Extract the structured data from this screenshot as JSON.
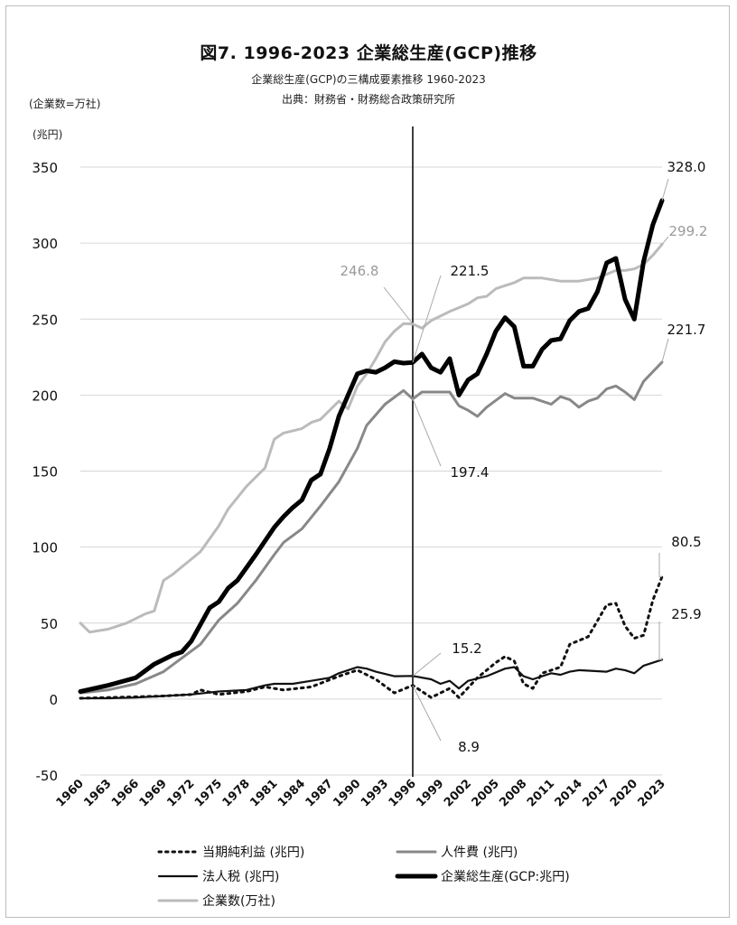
{
  "chart_data": {
    "type": "line",
    "title": "図7. 1996-2023 企業総生産(GCP)推移",
    "subtitle": "企業総生産(GCP)の三構成要素推移 1960-2023",
    "source": "出典：財務省・財務総合政策研究所",
    "unit_count": "(企業数=万社)",
    "unit_money": "(兆円)",
    "ylim": [
      -50,
      350
    ],
    "yticks": [
      -50,
      0,
      50,
      100,
      150,
      200,
      250,
      300,
      350
    ],
    "xlim": [
      1960,
      2023
    ],
    "xticks": [
      1960,
      1963,
      1966,
      1969,
      1972,
      1975,
      1978,
      1981,
      1984,
      1987,
      1990,
      1993,
      1996,
      1999,
      2002,
      2005,
      2008,
      2011,
      2014,
      2017,
      2020,
      2023
    ],
    "grid": true,
    "vline": 1996,
    "legend_position": "bottom",
    "series": [
      {
        "name": "当期純利益 (兆円)",
        "color": "#111111",
        "style": "dotted",
        "x": [
          1960,
          1963,
          1966,
          1969,
          1972,
          1973,
          1975,
          1978,
          1980,
          1982,
          1985,
          1988,
          1990,
          1992,
          1994,
          1996,
          1998,
          2000,
          2001,
          2003,
          2005,
          2006,
          2007,
          2008,
          2009,
          2010,
          2012,
          2013,
          2015,
          2017,
          2018,
          2019,
          2020,
          2021,
          2022,
          2023
        ],
        "values": [
          0.5,
          1,
          1.5,
          2,
          3,
          6,
          3,
          5,
          8,
          6,
          8,
          15,
          19,
          13,
          4,
          9,
          1,
          7,
          1,
          14,
          24,
          28,
          25,
          10,
          7,
          17,
          21,
          36,
          41,
          62,
          63,
          48,
          40,
          42,
          65,
          80.5
        ]
      },
      {
        "name": "人件費 (兆円)",
        "color": "#888888",
        "style": "solid",
        "x": [
          1960,
          1963,
          1966,
          1969,
          1971,
          1973,
          1975,
          1977,
          1979,
          1981,
          1982,
          1984,
          1986,
          1988,
          1990,
          1991,
          1993,
          1995,
          1996,
          1997,
          1998,
          2000,
          2001,
          2002,
          2003,
          2004,
          2006,
          2007,
          2009,
          2011,
          2012,
          2013,
          2014,
          2015,
          2016,
          2017,
          2018,
          2019,
          2020,
          2021,
          2023
        ],
        "values": [
          4,
          6,
          10,
          18,
          27,
          36,
          52,
          63,
          78,
          95,
          103,
          112,
          127,
          143,
          165,
          180,
          194,
          203,
          197.4,
          202,
          202,
          202,
          193,
          190,
          186,
          192,
          201,
          198,
          198,
          194,
          199,
          197,
          192,
          196,
          198,
          204,
          206,
          202,
          197,
          209,
          221.7
        ]
      },
      {
        "name": "法人税 (兆円)",
        "color": "#111111",
        "style": "solid-thin",
        "x": [
          1960,
          1963,
          1966,
          1969,
          1972,
          1975,
          1978,
          1980,
          1981,
          1983,
          1985,
          1987,
          1988,
          1989,
          1990,
          1991,
          1992,
          1994,
          1996,
          1998,
          1999,
          2000,
          2001,
          2002,
          2004,
          2006,
          2007,
          2008,
          2009,
          2011,
          2012,
          2013,
          2014,
          2017,
          2018,
          2019,
          2020,
          2021,
          2023
        ],
        "values": [
          0.5,
          0.5,
          1,
          2,
          3,
          5,
          6,
          9,
          10,
          10,
          12,
          14,
          17,
          19,
          21,
          20,
          18,
          15,
          15.2,
          13,
          10,
          12,
          7,
          12,
          15,
          20,
          21,
          15,
          13,
          17,
          16,
          18,
          19,
          18,
          20,
          19,
          17,
          22,
          25.9
        ]
      },
      {
        "name": "企業総生産(GCP:兆円)",
        "color": "#000000",
        "style": "solid-thick",
        "x": [
          1960,
          1963,
          1966,
          1968,
          1970,
          1971,
          1972,
          1974,
          1975,
          1976,
          1977,
          1979,
          1980,
          1981,
          1982,
          1983,
          1984,
          1985,
          1986,
          1987,
          1988,
          1989,
          1990,
          1991,
          1992,
          1993,
          1994,
          1995,
          1996,
          1997,
          1998,
          1999,
          2000,
          2001,
          2002,
          2003,
          2004,
          2005,
          2006,
          2007,
          2008,
          2009,
          2010,
          2011,
          2012,
          2013,
          2014,
          2015,
          2016,
          2017,
          2018,
          2019,
          2020,
          2021,
          2022,
          2023
        ],
        "values": [
          5,
          9,
          14,
          23,
          29,
          31,
          38,
          60,
          64,
          73,
          78,
          95,
          104,
          113,
          120,
          126,
          131,
          144,
          148,
          165,
          186,
          200,
          214,
          216,
          215,
          218,
          222,
          221,
          221.5,
          227,
          218,
          215,
          224,
          200,
          210,
          214,
          227,
          242,
          251,
          245,
          219,
          219,
          230,
          236,
          237,
          249,
          255,
          257,
          268,
          287,
          290,
          263,
          250,
          288,
          312,
          328
        ]
      },
      {
        "name": "企業数(万社)",
        "color": "#bbbbbb",
        "style": "solid",
        "x": [
          1960,
          1961,
          1963,
          1965,
          1967,
          1968,
          1969,
          1970,
          1971,
          1972,
          1973,
          1975,
          1976,
          1978,
          1980,
          1981,
          1982,
          1984,
          1985,
          1986,
          1987,
          1988,
          1989,
          1990,
          1991,
          1992,
          1993,
          1994,
          1995,
          1996,
          1997,
          1998,
          1999,
          2000,
          2002,
          2003,
          2004,
          2005,
          2006,
          2007,
          2008,
          2010,
          2012,
          2014,
          2016,
          2018,
          2019,
          2020,
          2021,
          2022,
          2023
        ],
        "values": [
          50,
          44,
          46,
          50,
          56,
          58,
          78,
          82,
          87,
          92,
          97,
          114,
          125,
          140,
          152,
          171,
          175,
          178,
          182,
          184,
          190,
          196,
          191,
          206,
          214,
          224,
          235,
          242,
          247,
          246.8,
          244,
          249,
          252,
          255,
          260,
          264,
          265,
          270,
          272,
          274,
          277,
          277,
          275,
          275,
          277,
          282,
          282,
          283,
          286,
          292,
          299.2
        ]
      }
    ],
    "annotations": [
      {
        "text": "328.0",
        "x": 2023,
        "y": 328,
        "color": "#111111"
      },
      {
        "text": "299.2",
        "x": 2023,
        "y": 299.2,
        "color": "#9a9a9a"
      },
      {
        "text": "221.7",
        "x": 2023,
        "y": 221.7,
        "color": "#111111"
      },
      {
        "text": "80.5",
        "x": 2023,
        "y": 80.5,
        "color": "#111111"
      },
      {
        "text": "25.9",
        "x": 2023,
        "y": 25.9,
        "color": "#111111"
      },
      {
        "text": "246.8",
        "x": 1996,
        "y": 246.8,
        "color": "#9a9a9a"
      },
      {
        "text": "221.5",
        "x": 1996,
        "y": 221.5,
        "color": "#111111"
      },
      {
        "text": "197.4",
        "x": 1996,
        "y": 197.4,
        "color": "#111111"
      },
      {
        "text": "15.2",
        "x": 1996,
        "y": 15.2,
        "color": "#111111"
      },
      {
        "text": "8.9",
        "x": 1996,
        "y": 8.9,
        "color": "#111111"
      }
    ]
  }
}
